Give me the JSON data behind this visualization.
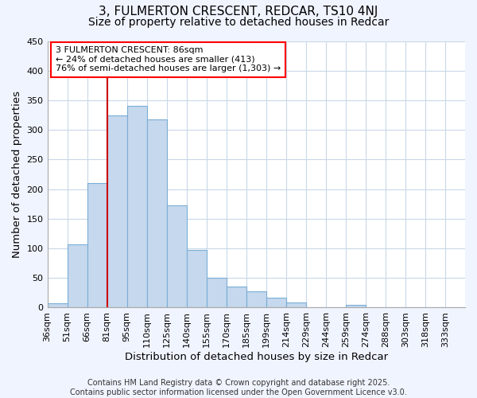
{
  "title": "3, FULMERTON CRESCENT, REDCAR, TS10 4NJ",
  "subtitle": "Size of property relative to detached houses in Redcar",
  "xlabel": "Distribution of detached houses by size in Redcar",
  "ylabel": "Number of detached properties",
  "bin_labels": [
    "36sqm",
    "51sqm",
    "66sqm",
    "81sqm",
    "95sqm",
    "110sqm",
    "125sqm",
    "140sqm",
    "155sqm",
    "170sqm",
    "185sqm",
    "199sqm",
    "214sqm",
    "229sqm",
    "244sqm",
    "259sqm",
    "274sqm",
    "288sqm",
    "303sqm",
    "318sqm",
    "333sqm"
  ],
  "bar_values": [
    7,
    107,
    210,
    325,
    340,
    318,
    172,
    98,
    50,
    36,
    28,
    17,
    9,
    0,
    0,
    4,
    0,
    0,
    0,
    0,
    0
  ],
  "bar_color": "#c5d8ed",
  "bar_edgecolor": "#7aaed6",
  "ylim": [
    0,
    450
  ],
  "yticks": [
    0,
    50,
    100,
    150,
    200,
    250,
    300,
    350,
    400,
    450
  ],
  "vline_bin_index": 3,
  "annotation_box_text": [
    "3 FULMERTON CRESCENT: 86sqm",
    "← 24% of detached houses are smaller (413)",
    "76% of semi-detached houses are larger (1,303) →"
  ],
  "vline_color": "#cc0000",
  "footer_lines": [
    "Contains HM Land Registry data © Crown copyright and database right 2025.",
    "Contains public sector information licensed under the Open Government Licence v3.0."
  ],
  "background_color": "#ffffff",
  "figure_background": "#f0f4ff",
  "grid_color": "#c8d8e8",
  "title_fontsize": 11,
  "subtitle_fontsize": 10,
  "axis_label_fontsize": 9.5,
  "tick_fontsize": 8,
  "annotation_fontsize": 8,
  "footer_fontsize": 7
}
